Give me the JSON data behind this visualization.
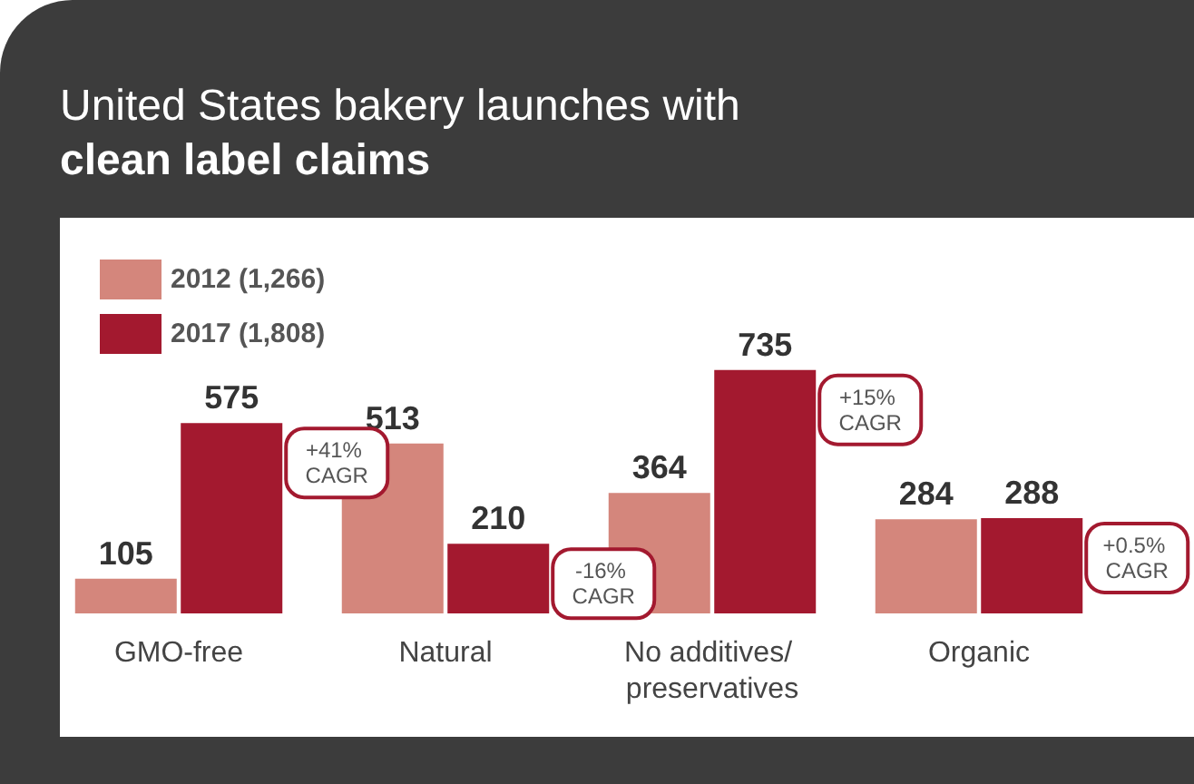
{
  "chart_data": {
    "type": "bar",
    "title": "United States bakery launches with\nclean label claims",
    "categories": [
      "GMO-free",
      "Natural",
      "No additives/ preservatives",
      "Organic"
    ],
    "series": [
      {
        "name": "2012 (1,266)",
        "color": "#d4867c",
        "values": [
          105,
          513,
          364,
          284
        ]
      },
      {
        "name": "2017 (1,808)",
        "color": "#a3192f",
        "values": [
          575,
          210,
          735,
          288
        ]
      }
    ],
    "data_labels": true,
    "legend": "top left",
    "grid": false,
    "annotations": [
      "+41% CAGR",
      "-16% CAGR",
      "+15% CAGR",
      "+0.5% CAGR"
    ]
  }
}
